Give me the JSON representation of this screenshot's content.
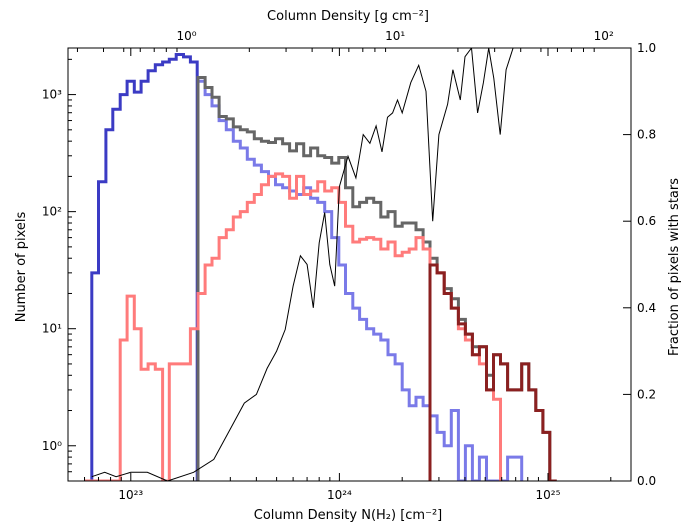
{
  "chart_data": {
    "type": "line",
    "title": "",
    "xlabel": "Column Density N(H₂) [cm⁻²]",
    "x2label": "Column Density [g cm⁻²]",
    "ylabel": "Number of pixels",
    "y2label": "Fraction of pixels with stars",
    "xscale": "log",
    "yscale": "log",
    "xlim": [
      5e+22,
      2.5e+25
    ],
    "ylim": [
      0.5,
      2500
    ],
    "y2lim": [
      0.0,
      1.0
    ],
    "x_ticks": [
      {
        "value": 1e+23,
        "label": "10²³"
      },
      {
        "value": 1e+24,
        "label": "10²⁴"
      },
      {
        "value": 1e+25,
        "label": "10²⁵"
      }
    ],
    "x2_ticks": [
      {
        "value": 1,
        "label": "10⁰"
      },
      {
        "value": 10,
        "label": "10¹"
      },
      {
        "value": 100,
        "label": "10²"
      }
    ],
    "y_ticks": [
      {
        "value": 1,
        "label": "10⁰"
      },
      {
        "value": 10,
        "label": "10¹"
      },
      {
        "value": 100,
        "label": "10²"
      },
      {
        "value": 1000,
        "label": "10³"
      }
    ],
    "y2_ticks": [
      {
        "value": 0.0,
        "label": "0.0"
      },
      {
        "value": 0.2,
        "label": "0.2"
      },
      {
        "value": 0.4,
        "label": "0.4"
      },
      {
        "value": 0.6,
        "label": "0.6"
      },
      {
        "value": 0.8,
        "label": "0.8"
      },
      {
        "value": 1.0,
        "label": "1.0"
      }
    ],
    "series": [
      {
        "color": "#3b3bc4",
        "style": "step",
        "axis": "left",
        "x": [
          6e+22,
          6.5e+22,
          7e+22,
          7.6e+22,
          8.2e+22,
          8.9e+22,
          9.6e+22,
          1.04e+23,
          1.12e+23,
          1.21e+23,
          1.31e+23,
          1.42e+23,
          1.53e+23,
          1.65e+23,
          1.79e+23,
          1.93e+23
        ],
        "y": [
          0.5,
          30,
          180,
          500,
          750,
          1000,
          1300,
          1050,
          1300,
          1600,
          1800,
          1900,
          2000,
          2200,
          2100,
          1900
        ]
      },
      {
        "color": "#7a7ae8",
        "style": "step",
        "axis": "left",
        "x": [
          2.1e+23,
          2.27e+23,
          2.45e+23,
          2.65e+23,
          2.87e+23,
          3.1e+23,
          3.35e+23,
          3.62e+23,
          3.91e+23,
          4.23e+23,
          4.57e+23,
          4.94e+23,
          5.34e+23,
          5.77e+23,
          6.23e+23,
          6.74e+23,
          7.28e+23,
          7.87e+23,
          8.5e+23,
          9.19e+23,
          9.93e+23,
          1.07e+24,
          1.16e+24,
          1.25e+24,
          1.35e+24,
          1.46e+24,
          1.58e+24,
          1.71e+24,
          1.85e+24,
          2e+24,
          2.16e+24,
          2.33e+24,
          2.52e+24,
          2.72e+24,
          2.94e+24,
          3.18e+24,
          3.44e+24,
          3.72e+24,
          4.02e+24,
          4.34e+24,
          4.69e+24,
          5.07e+24,
          5.48e+24,
          5.92e+24,
          6.4e+24,
          6.92e+24
        ],
        "y": [
          1300,
          1000,
          800,
          600,
          500,
          400,
          350,
          280,
          250,
          220,
          200,
          170,
          160,
          150,
          140,
          160,
          130,
          120,
          100,
          60,
          35,
          20,
          15,
          12,
          10,
          9,
          8,
          6,
          5,
          3,
          2.2,
          2.6,
          2.2,
          1.8,
          1.3,
          1.0,
          2.0,
          0.5,
          1.0,
          0.5,
          0.8,
          0.5,
          0.5,
          0.5,
          0.8,
          0.8
        ]
      },
      {
        "color": "#666666",
        "style": "step",
        "axis": "left",
        "x": [
          2.1e+23,
          2.27e+23,
          2.45e+23,
          2.65e+23,
          2.87e+23,
          3.1e+23,
          3.35e+23,
          3.62e+23,
          3.91e+23,
          4.23e+23,
          4.57e+23,
          4.94e+23,
          5.34e+23,
          5.77e+23,
          6.23e+23,
          6.74e+23,
          7.28e+23,
          7.87e+23,
          8.5e+23,
          9.19e+23,
          9.93e+23,
          1.07e+24,
          1.16e+24,
          1.25e+24,
          1.35e+24,
          1.46e+24,
          1.58e+24,
          1.71e+24,
          1.85e+24,
          2e+24,
          2.16e+24,
          2.33e+24,
          2.52e+24,
          2.72e+24,
          2.94e+24,
          3.18e+24,
          3.44e+24,
          3.72e+24,
          4.02e+24,
          4.34e+24,
          4.69e+24,
          5.07e+24,
          5.48e+24,
          5.92e+24,
          6.4e+24,
          6.92e+24,
          7.48e+24,
          8.09e+24,
          8.74e+24,
          9.45e+24,
          1.02e+25
        ],
        "y": [
          1400,
          1150,
          950,
          650,
          620,
          530,
          500,
          480,
          420,
          400,
          390,
          420,
          380,
          330,
          380,
          300,
          350,
          300,
          290,
          260,
          290,
          160,
          110,
          120,
          130,
          120,
          90,
          100,
          75,
          80,
          80,
          70,
          55,
          40,
          30,
          22,
          18,
          12,
          9,
          7,
          7,
          4,
          6,
          5,
          3,
          3,
          5,
          3,
          2,
          1.3,
          0.5
        ]
      },
      {
        "color": "#ff7b7b",
        "style": "step",
        "axis": "left",
        "x": [
          6e+22,
          6.5e+22,
          7e+22,
          7.6e+22,
          8.2e+22,
          8.9e+22,
          9.6e+22,
          1.04e+23,
          1.12e+23,
          1.21e+23,
          1.31e+23,
          1.42e+23,
          1.53e+23,
          1.65e+23,
          1.79e+23,
          1.93e+23,
          2.1e+23,
          2.27e+23,
          2.45e+23,
          2.65e+23,
          2.87e+23,
          3.1e+23,
          3.35e+23,
          3.62e+23,
          3.91e+23,
          4.23e+23,
          4.57e+23,
          4.94e+23,
          5.34e+23,
          5.77e+23,
          6.23e+23,
          6.74e+23,
          7.28e+23,
          7.87e+23,
          8.5e+23,
          9.19e+23,
          9.93e+23,
          1.07e+24,
          1.16e+24,
          1.25e+24,
          1.35e+24,
          1.46e+24,
          1.58e+24,
          1.71e+24,
          1.85e+24,
          2e+24,
          2.16e+24,
          2.33e+24,
          2.52e+24,
          2.72e+24,
          2.94e+24,
          3.18e+24,
          3.44e+24,
          3.72e+24,
          4.02e+24,
          4.34e+24,
          4.69e+24,
          5.07e+24,
          5.48e+24
        ],
        "y": [
          0.5,
          0.5,
          0.5,
          0.5,
          0.5,
          8,
          19,
          10,
          4.5,
          5,
          4.5,
          0.5,
          5,
          5,
          5,
          10,
          20,
          35,
          40,
          60,
          70,
          90,
          100,
          120,
          140,
          170,
          200,
          210,
          200,
          130,
          200,
          140,
          150,
          180,
          150,
          160,
          120,
          75,
          55,
          58,
          60,
          58,
          48,
          55,
          42,
          45,
          48,
          60,
          48,
          35,
          30,
          20,
          15,
          10,
          8,
          6,
          5,
          3,
          2.5
        ]
      },
      {
        "color": "#8b2020",
        "style": "step",
        "axis": "left",
        "x": [
          2.72e+24,
          2.94e+24,
          3.18e+24,
          3.44e+24,
          3.72e+24,
          4.02e+24,
          4.34e+24,
          4.69e+24,
          5.07e+24,
          5.48e+24,
          5.92e+24,
          6.4e+24,
          6.92e+24,
          7.48e+24,
          8.09e+24,
          8.74e+24,
          9.45e+24,
          1.02e+25
        ],
        "y": [
          35,
          30,
          20,
          15,
          11,
          9,
          6,
          7,
          3,
          6,
          5,
          3,
          3,
          5,
          3,
          2,
          1.3,
          0.5
        ]
      },
      {
        "color": "#000000",
        "style": "line",
        "axis": "right",
        "x": [
          6.5e+22,
          7.5e+22,
          8.5e+22,
          1e+23,
          1.2e+23,
          1.5e+23,
          2e+23,
          2.5e+23,
          3e+23,
          3.5e+23,
          4e+23,
          4.5e+23,
          5e+23,
          5.5e+23,
          6e+23,
          6.5e+23,
          7e+23,
          7.5e+23,
          8e+23,
          8.5e+23,
          9e+23,
          9.5e+23,
          1e+24,
          1.1e+24,
          1.2e+24,
          1.3e+24,
          1.4e+24,
          1.5e+24,
          1.6e+24,
          1.7e+24,
          1.8e+24,
          1.9e+24,
          2e+24,
          2.2e+24,
          2.4e+24,
          2.6e+24,
          2.8e+24,
          3e+24,
          3.3e+24,
          3.5e+24,
          3.8e+24,
          4e+24,
          4.3e+24,
          4.6e+24,
          4.9e+24,
          5.2e+24,
          5.5e+24,
          5.9e+24,
          6.3e+24,
          6.8e+24
        ],
        "y": [
          0.01,
          0.02,
          0.01,
          0.02,
          0.02,
          0.0,
          0.02,
          0.05,
          0.12,
          0.18,
          0.2,
          0.26,
          0.3,
          0.35,
          0.45,
          0.52,
          0.5,
          0.4,
          0.55,
          0.62,
          0.5,
          0.45,
          0.68,
          0.75,
          0.7,
          0.8,
          0.78,
          0.82,
          0.76,
          0.84,
          0.85,
          0.88,
          0.85,
          0.92,
          0.96,
          0.9,
          0.6,
          0.8,
          0.87,
          0.95,
          0.88,
          0.98,
          1.0,
          0.85,
          0.92,
          1.0,
          0.93,
          0.8,
          0.95,
          1.0
        ]
      }
    ]
  }
}
